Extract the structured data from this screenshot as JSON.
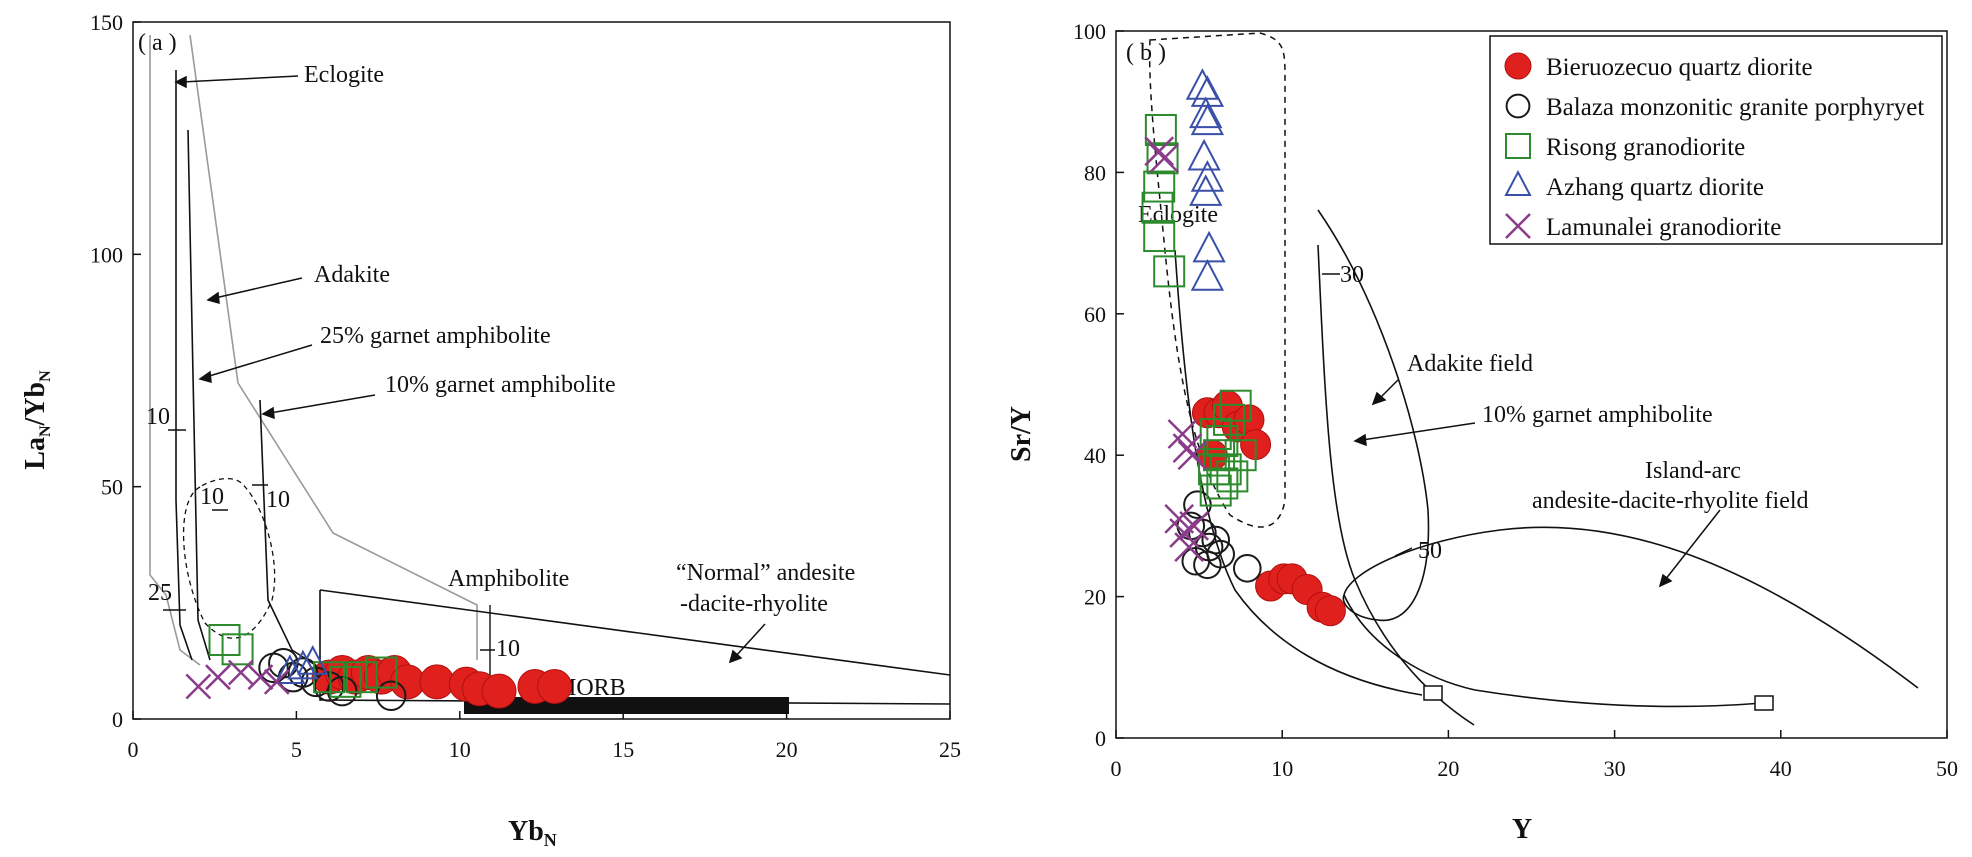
{
  "chart_data": [
    {
      "type": "scatter",
      "panel_label": "( a )",
      "xlabel": "Yb",
      "xlabel_sub": "N",
      "ylabel_parts": [
        "La",
        "N",
        "/Yb",
        "N"
      ],
      "xlim": [
        0,
        25
      ],
      "ylim": [
        0,
        150
      ],
      "xticks": [
        0,
        5,
        10,
        15,
        20,
        25
      ],
      "yticks": [
        0,
        50,
        100,
        150
      ],
      "annotations": {
        "eclogite": "Eclogite",
        "adakite": "Adakite",
        "garnet25": "25% garnet amphibolite",
        "garnet10": "10% garnet amphibolite",
        "amphibolite": "Amphibolite",
        "normal1": "“Normal” andesite",
        "normal2": "-dacite-rhyolite",
        "morb": "MORB",
        "t10a": "10",
        "t10b": "10",
        "t10c": "10",
        "t10d": "10",
        "t25": "25"
      },
      "series": [
        {
          "name": "Bieruozecuo quartz diorite",
          "marker": "filled-circle",
          "points": [
            [
              6.0,
              9
            ],
            [
              6.4,
              10
            ],
            [
              6.8,
              9
            ],
            [
              7.2,
              10
            ],
            [
              7.6,
              9
            ],
            [
              8.0,
              10
            ],
            [
              8.4,
              8
            ],
            [
              9.3,
              8
            ],
            [
              10.2,
              7.5
            ],
            [
              10.6,
              6.5
            ],
            [
              11.2,
              6
            ],
            [
              12.3,
              7
            ],
            [
              12.9,
              7
            ]
          ]
        },
        {
          "name": "Balaza monzonitic granite porphyryet",
          "marker": "open-circle",
          "points": [
            [
              4.3,
              11
            ],
            [
              4.6,
              12
            ],
            [
              4.9,
              9
            ],
            [
              5.2,
              10
            ],
            [
              5.6,
              8
            ],
            [
              6.0,
              7
            ],
            [
              6.4,
              6
            ],
            [
              7.9,
              5
            ]
          ]
        },
        {
          "name": "Risong granodiorite",
          "marker": "square",
          "points": [
            [
              2.8,
              17
            ],
            [
              3.2,
              15
            ],
            [
              6.0,
              9
            ],
            [
              6.5,
              8
            ],
            [
              7.0,
              9
            ],
            [
              7.6,
              10
            ]
          ]
        },
        {
          "name": "Azhang quartz diorite",
          "marker": "triangle",
          "points": [
            [
              4.8,
              10
            ],
            [
              5.2,
              11
            ],
            [
              5.5,
              12
            ]
          ]
        },
        {
          "name": "Lamunalei granodiorite",
          "marker": "cross",
          "points": [
            [
              2.0,
              7
            ],
            [
              2.6,
              9
            ],
            [
              3.3,
              10
            ],
            [
              3.9,
              9
            ],
            [
              4.4,
              8
            ]
          ]
        }
      ]
    },
    {
      "type": "scatter",
      "panel_label": "( b )",
      "xlabel": "Y",
      "ylabel": "Sr/Y",
      "xlim": [
        0,
        50
      ],
      "ylim": [
        0,
        100
      ],
      "xticks": [
        0,
        10,
        20,
        30,
        40,
        50
      ],
      "yticks": [
        0,
        20,
        40,
        60,
        80,
        100
      ],
      "annotations": {
        "eclogite": "Eclogite",
        "adakite_field": "Adakite field",
        "garnet10": "10% garnet amphibolite",
        "island1": "Island-arc",
        "island2": "andesite-dacite-rhyolite field",
        "t30": "30",
        "t50": "50"
      },
      "series": [
        {
          "name": "Bieruozecuo quartz diorite",
          "marker": "filled-circle",
          "points": [
            [
              5.5,
              46
            ],
            [
              6.2,
              46
            ],
            [
              6.7,
              47
            ],
            [
              7.3,
              44
            ],
            [
              8.0,
              45
            ],
            [
              8.4,
              41.5
            ],
            [
              5.8,
              40
            ],
            [
              9.3,
              21.5
            ],
            [
              10.1,
              22.5
            ],
            [
              10.6,
              22.5
            ],
            [
              11.5,
              21
            ],
            [
              12.4,
              18.5
            ],
            [
              12.9,
              18
            ]
          ]
        },
        {
          "name": "Balaza monzonitic granite porphyryet",
          "marker": "open-circle",
          "points": [
            [
              4.5,
              30
            ],
            [
              4.9,
              33
            ],
            [
              5.2,
              29
            ],
            [
              5.6,
              27
            ],
            [
              6.0,
              28
            ],
            [
              6.3,
              26
            ],
            [
              4.8,
              25
            ],
            [
              5.5,
              24.5
            ],
            [
              7.9,
              24
            ]
          ]
        },
        {
          "name": "Risong granodiorite",
          "marker": "square",
          "points": [
            [
              2.7,
              86
            ],
            [
              2.8,
              82
            ],
            [
              2.6,
              78
            ],
            [
              2.5,
              75
            ],
            [
              2.6,
              71
            ],
            [
              3.2,
              66
            ],
            [
              6.0,
              43
            ],
            [
              6.4,
              42
            ],
            [
              6.8,
              45
            ],
            [
              7.2,
              47
            ],
            [
              6.2,
              40
            ],
            [
              6.6,
              38
            ],
            [
              7.0,
              37
            ],
            [
              6.0,
              35
            ],
            [
              6.4,
              36
            ],
            [
              5.9,
              38
            ],
            [
              7.5,
              40
            ]
          ]
        },
        {
          "name": "Azhang quartz diorite",
          "marker": "triangle",
          "points": [
            [
              5.2,
              92
            ],
            [
              5.5,
              91
            ],
            [
              5.4,
              88
            ],
            [
              5.5,
              87
            ],
            [
              5.3,
              82
            ],
            [
              5.5,
              79
            ],
            [
              5.4,
              77
            ],
            [
              5.6,
              69
            ],
            [
              5.5,
              65
            ]
          ]
        },
        {
          "name": "Lamunalei granodiorite",
          "marker": "cross",
          "points": [
            [
              2.6,
              83
            ],
            [
              2.9,
              82
            ],
            [
              4.0,
              43
            ],
            [
              4.3,
              41
            ],
            [
              4.6,
              40
            ],
            [
              3.8,
              31
            ],
            [
              4.1,
              29
            ],
            [
              4.4,
              27
            ],
            [
              4.7,
              30
            ]
          ]
        }
      ]
    }
  ],
  "legend": [
    {
      "label": "Bieruozecuo quartz diorite",
      "marker": "filled-circle"
    },
    {
      "label": "Balaza monzonitic granite porphyryet",
      "marker": "open-circle"
    },
    {
      "label": "Risong granodiorite",
      "marker": "square"
    },
    {
      "label": "Azhang quartz diorite",
      "marker": "triangle"
    },
    {
      "label": "Lamunalei granodiorite",
      "marker": "cross"
    }
  ],
  "colors": {
    "filled_circle": "#e0201c",
    "square": "#2d8a2d",
    "triangle": "#3a4fa8",
    "cross": "#8a3c8a",
    "line": "#1a1a1a",
    "gray": "#9a9a9a"
  }
}
